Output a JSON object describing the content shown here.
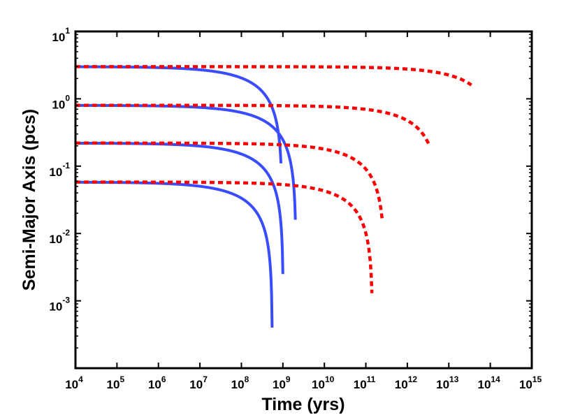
{
  "chart_data": {
    "type": "line",
    "title": "",
    "xlabel": "Time (yrs)",
    "ylabel": "Semi-Major Axis (pcs)",
    "xscale": "log",
    "yscale": "log",
    "xlim": [
      10000,
      1000000000000000
    ],
    "ylim": [
      0.0001,
      10
    ],
    "grid": false,
    "legend": "none",
    "x_ticks": [
      {
        "value": 10000,
        "base": "10",
        "exp": "4"
      },
      {
        "value": 100000,
        "base": "10",
        "exp": "5"
      },
      {
        "value": 1000000,
        "base": "10",
        "exp": "6"
      },
      {
        "value": 10000000,
        "base": "10",
        "exp": "7"
      },
      {
        "value": 100000000,
        "base": "10",
        "exp": "8"
      },
      {
        "value": 1000000000,
        "base": "10",
        "exp": "9"
      },
      {
        "value": 10000000000,
        "base": "10",
        "exp": "10"
      },
      {
        "value": 100000000000,
        "base": "10",
        "exp": "11"
      },
      {
        "value": 1000000000000,
        "base": "10",
        "exp": "12"
      },
      {
        "value": 10000000000000,
        "base": "10",
        "exp": "13"
      },
      {
        "value": 100000000000000,
        "base": "10",
        "exp": "14"
      },
      {
        "value": 1000000000000000,
        "base": "10",
        "exp": "15"
      }
    ],
    "y_ticks": [
      {
        "value": 0.001,
        "base": "10",
        "exp": "-3"
      },
      {
        "value": 0.01,
        "base": "10",
        "exp": "-2"
      },
      {
        "value": 0.1,
        "base": "10",
        "exp": "-1"
      },
      {
        "value": 1,
        "base": "10",
        "exp": "0"
      },
      {
        "value": 10,
        "base": "10",
        "exp": "1"
      }
    ],
    "colors": {
      "solid": "#3a4cff",
      "dashed": "#ff0000",
      "axis": "#000000"
    },
    "series": [
      {
        "style": "solid",
        "color": "#3a4cff",
        "a0": 3.0,
        "t_end": 900000000,
        "a_end": 0.11
      },
      {
        "style": "solid",
        "color": "#3a4cff",
        "a0": 0.8,
        "t_end": 2000000000,
        "a_end": 0.016
      },
      {
        "style": "solid",
        "color": "#3a4cff",
        "a0": 0.22,
        "t_end": 1000000000,
        "a_end": 0.0025
      },
      {
        "style": "solid",
        "color": "#3a4cff",
        "a0": 0.058,
        "t_end": 550000000,
        "a_end": 0.0004
      },
      {
        "style": "dashed",
        "color": "#ff0000",
        "a0": 3.0,
        "t_end": 35000000000000,
        "a_end": 1.6
      },
      {
        "style": "dashed",
        "color": "#ff0000",
        "a0": 0.8,
        "t_end": 3300000000000,
        "a_end": 0.21
      },
      {
        "style": "dashed",
        "color": "#ff0000",
        "a0": 0.22,
        "t_end": 250000000000,
        "a_end": 0.015
      },
      {
        "style": "dashed",
        "color": "#ff0000",
        "a0": 0.058,
        "t_end": 140000000000,
        "a_end": 0.0013
      }
    ]
  }
}
